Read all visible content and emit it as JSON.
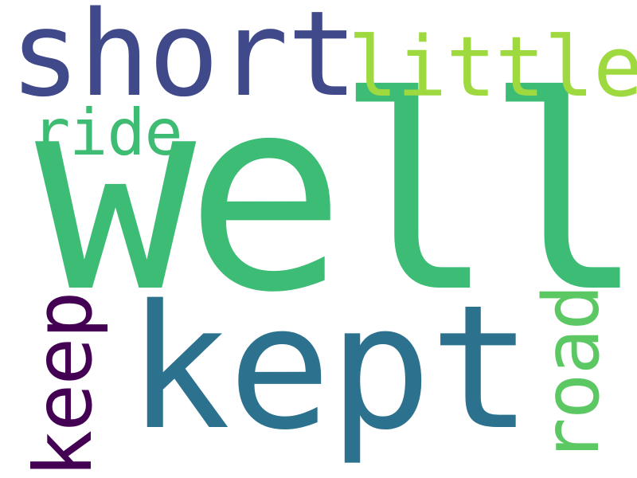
{
  "words": [
    {
      "id": "well",
      "text": "well",
      "color": "#3dbc75",
      "orientation": "horizontal"
    },
    {
      "id": "short",
      "text": "short",
      "color": "#404a8b",
      "orientation": "horizontal"
    },
    {
      "id": "little",
      "text": "little",
      "color": "#9fd940",
      "orientation": "horizontal"
    },
    {
      "id": "ride",
      "text": "ride",
      "color": "#3fbc73",
      "orientation": "horizontal"
    },
    {
      "id": "kept",
      "text": "kept",
      "color": "#2c728e",
      "orientation": "horizontal"
    },
    {
      "id": "keep",
      "text": "keep",
      "color": "#440154",
      "orientation": "vertical"
    },
    {
      "id": "road",
      "text": "road",
      "color": "#5cc863",
      "orientation": "vertical"
    }
  ],
  "background_color": "#ffffff"
}
